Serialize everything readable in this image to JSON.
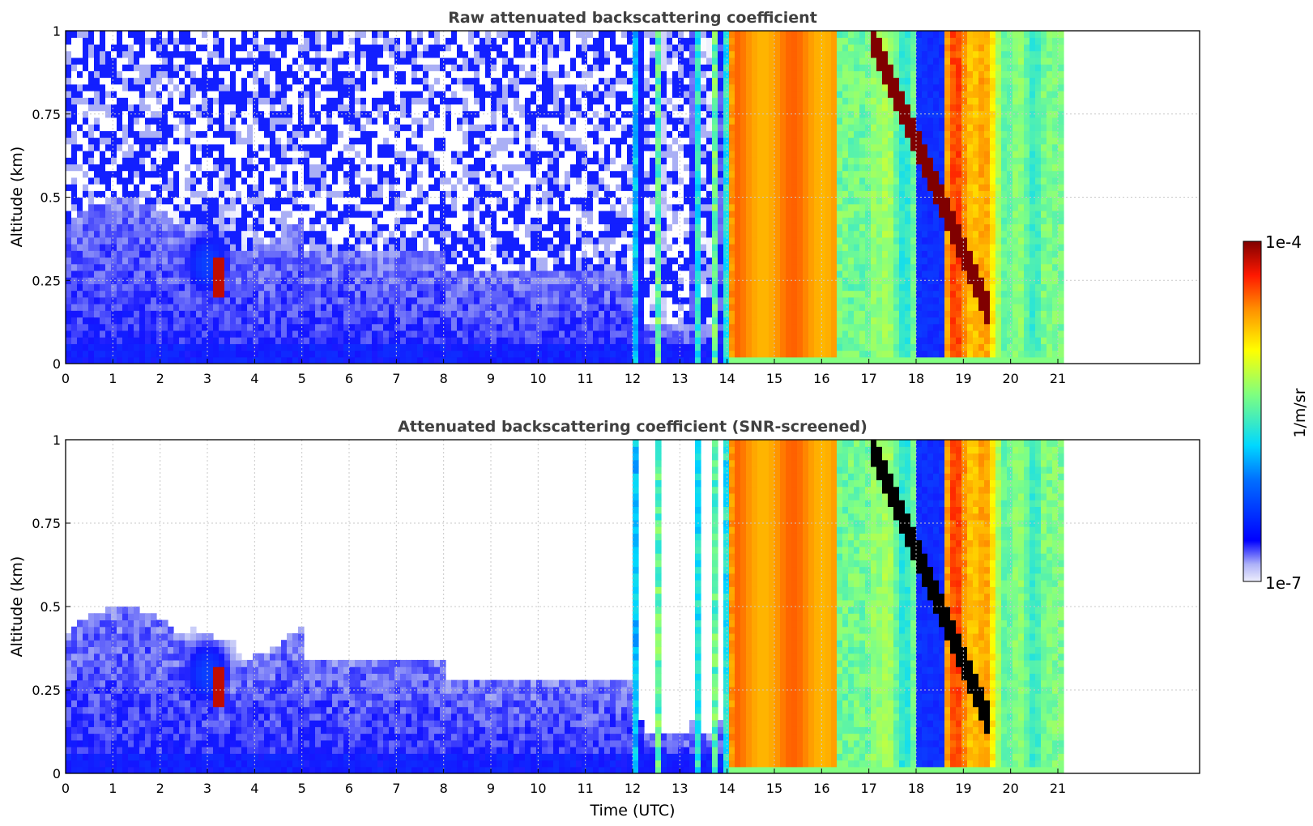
{
  "chart_data": [
    {
      "type": "heatmap",
      "title": "Raw attenuated backscattering coefficient",
      "ylabel": "Altitude (km)",
      "xlabel": "",
      "xlim": [
        0,
        24
      ],
      "ylim": [
        0,
        1
      ],
      "x_ticks": [
        "0",
        "1",
        "2",
        "3",
        "4",
        "5",
        "6",
        "7",
        "8",
        "9",
        "10",
        "11",
        "12",
        "13",
        "14",
        "15",
        "16",
        "17",
        "18",
        "19",
        "20",
        "21"
      ],
      "y_ticks": [
        "0",
        "0.25",
        "0.5",
        "0.75",
        "1"
      ],
      "grid": true,
      "data_extent_hours": [
        0,
        21.15
      ],
      "features": [
        {
          "x_range": [
            0,
            12
          ],
          "signal": "low (1e-7 to ~1e-6), noisy above 0.3 km",
          "aerosol_layer_top_km": 0.4
        },
        {
          "x_range": [
            3.2,
            3.35
          ],
          "y_range": [
            0.22,
            0.3
          ],
          "signal": "high (~1e-4)"
        },
        {
          "x_range": [
            12,
            14.05
          ],
          "signal": "narrow vertical cloud streaks (~1e-5)"
        },
        {
          "x_range": [
            14.05,
            18
          ],
          "signal": "high (~3e-5 to 5e-5)"
        },
        {
          "x_range": [
            17,
            19.6
          ],
          "y_range": [
            0.3,
            1
          ],
          "signal": "very high (~1e-4) descending layer"
        },
        {
          "x_range": [
            18.6,
            21.15
          ],
          "signal": "high (~3e-5) with gaps"
        }
      ]
    },
    {
      "type": "heatmap",
      "title": "Attenuated backscattering coefficient (SNR-screened)",
      "ylabel": "Altitude (km)",
      "xlabel": "Time (UTC)",
      "xlim": [
        0,
        24
      ],
      "ylim": [
        0,
        1
      ],
      "x_ticks": [
        "0",
        "1",
        "2",
        "3",
        "4",
        "5",
        "6",
        "7",
        "8",
        "9",
        "10",
        "11",
        "12",
        "13",
        "14",
        "15",
        "16",
        "17",
        "18",
        "19",
        "20",
        "21"
      ],
      "y_ticks": [
        "0",
        "0.25",
        "0.5",
        "0.75",
        "1"
      ],
      "grid": true,
      "data_extent_hours": [
        0,
        21.15
      ],
      "features": [
        {
          "x_range": [
            0,
            5
          ],
          "y_range": [
            0,
            0.6
          ],
          "signal": "low (~1e-6)"
        },
        {
          "x_range": [
            5,
            12
          ],
          "y_range": [
            0,
            0.4
          ],
          "signal": "low (~1e-6)"
        },
        {
          "x_range": [
            3.2,
            3.35
          ],
          "y_range": [
            0.22,
            0.3
          ],
          "signal": "high (~1e-4)"
        },
        {
          "x_range": [
            14.05,
            18
          ],
          "signal": "high (~3e-5 to 5e-5)"
        },
        {
          "x_range": [
            17,
            19.6
          ],
          "y_range": [
            0.3,
            1
          ],
          "signal": "saturated (black) descending layer"
        }
      ]
    }
  ],
  "colorbar": {
    "label": "1/m/sr",
    "max_label": "1e-4",
    "min_label": "1e-7",
    "scale": "log",
    "range": [
      1e-07,
      0.0001
    ],
    "colormap": "jet"
  }
}
